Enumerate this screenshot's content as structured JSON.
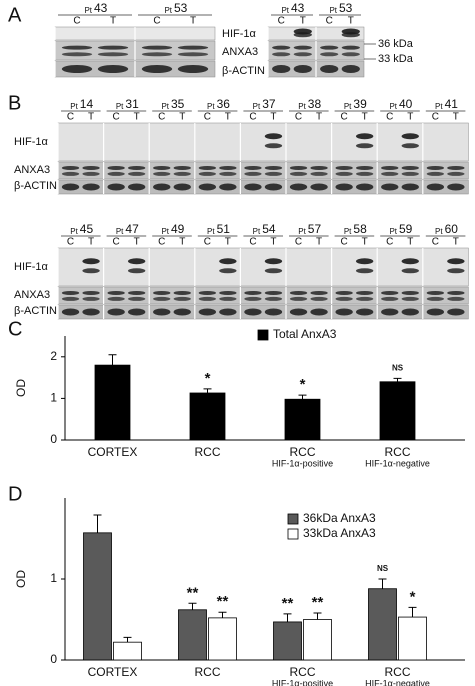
{
  "panel_labels": [
    "A",
    "B",
    "C",
    "D"
  ],
  "panel_a": {
    "left_blot": {
      "patients": [
        {
          "prefix": "Pt",
          "number": "43",
          "lanes": [
            "C",
            "T"
          ]
        },
        {
          "prefix": "Pt",
          "number": "53",
          "lanes": [
            "C",
            "T"
          ]
        }
      ]
    },
    "right_blot": {
      "patients": [
        {
          "prefix": "Pt",
          "number": "43",
          "lanes": [
            "C",
            "T"
          ]
        },
        {
          "prefix": "Pt",
          "number": "53",
          "lanes": [
            "C",
            "T"
          ]
        }
      ],
      "row_labels": [
        "HIF-1α",
        "ANXA3",
        "β-ACTIN"
      ],
      "markers": [
        "36 kDa",
        "33 kDa"
      ]
    }
  },
  "panel_b": {
    "rows": [
      {
        "row_labels": [
          "HIF-1α",
          "ANXA3",
          "β-ACTIN"
        ],
        "patients": [
          {
            "prefix": "Pt",
            "number": "14",
            "lanes": [
              "C",
              "T"
            ]
          },
          {
            "prefix": "Pt",
            "number": "31",
            "lanes": [
              "C",
              "T"
            ]
          },
          {
            "prefix": "Pt",
            "number": "35",
            "lanes": [
              "C",
              "T"
            ]
          },
          {
            "prefix": "Pt",
            "number": "36",
            "lanes": [
              "C",
              "T"
            ]
          },
          {
            "prefix": "Pt",
            "number": "37",
            "lanes": [
              "C",
              "T"
            ]
          },
          {
            "prefix": "Pt",
            "number": "38",
            "lanes": [
              "C",
              "T"
            ]
          },
          {
            "prefix": "Pt",
            "number": "39",
            "lanes": [
              "C",
              "T"
            ]
          },
          {
            "prefix": "Pt",
            "number": "40",
            "lanes": [
              "C",
              "T"
            ]
          },
          {
            "prefix": "Pt",
            "number": "41",
            "lanes": [
              "C",
              "T"
            ]
          }
        ]
      },
      {
        "row_labels": [
          "HIF-1α",
          "ANXA3",
          "β-ACTIN"
        ],
        "patients": [
          {
            "prefix": "Pt",
            "number": "45",
            "lanes": [
              "C",
              "T"
            ]
          },
          {
            "prefix": "Pt",
            "number": "47",
            "lanes": [
              "C",
              "T"
            ]
          },
          {
            "prefix": "Pt",
            "number": "49",
            "lanes": [
              "C",
              "T"
            ]
          },
          {
            "prefix": "Pt",
            "number": "51",
            "lanes": [
              "C",
              "T"
            ]
          },
          {
            "prefix": "Pt",
            "number": "54",
            "lanes": [
              "C",
              "T"
            ]
          },
          {
            "prefix": "Pt",
            "number": "57",
            "lanes": [
              "C",
              "T"
            ]
          },
          {
            "prefix": "Pt",
            "number": "58",
            "lanes": [
              "C",
              "T"
            ]
          },
          {
            "prefix": "Pt",
            "number": "59",
            "lanes": [
              "C",
              "T"
            ]
          },
          {
            "prefix": "Pt",
            "number": "60",
            "lanes": [
              "C",
              "T"
            ]
          }
        ]
      }
    ]
  },
  "chart_data": [
    {
      "type": "bar",
      "ylabel": "OD",
      "categories": [
        "CORTEX",
        "RCC",
        "RCC",
        "RCC"
      ],
      "category_sublabels": [
        null,
        null,
        "HIF-1α-positive",
        "HIF-1α-negative"
      ],
      "ylim": [
        0,
        2.5
      ],
      "yticks": [
        0,
        1,
        2
      ],
      "legend": "upper right",
      "series": [
        {
          "name": "Total AnxA3",
          "color": "#000000",
          "values": [
            1.8,
            1.13,
            0.98,
            1.4
          ],
          "errors": [
            0.25,
            0.1,
            0.1,
            0.08
          ],
          "annotations": [
            null,
            "*",
            "*",
            "NS"
          ]
        }
      ]
    },
    {
      "type": "bar",
      "ylabel": "OD",
      "categories": [
        "CORTEX",
        "RCC",
        "RCC",
        "RCC"
      ],
      "category_sublabels": [
        null,
        null,
        "HIF-1α-positive",
        "HIF-1α-negative"
      ],
      "ylim": [
        0,
        2
      ],
      "yticks": [
        0,
        1
      ],
      "legend": "upper right",
      "series": [
        {
          "name": "36kDa AnxA3",
          "color": "#5a5a5a",
          "values": [
            1.57,
            0.62,
            0.47,
            0.88
          ],
          "errors": [
            0.22,
            0.08,
            0.1,
            0.12
          ],
          "annotations": [
            null,
            "**",
            "**",
            "NS"
          ]
        },
        {
          "name": "33kDa AnxA3",
          "color": "#ffffff",
          "values": [
            0.22,
            0.52,
            0.5,
            0.53
          ],
          "errors": [
            0.06,
            0.07,
            0.08,
            0.12
          ],
          "annotations": [
            null,
            "**",
            "**",
            "*"
          ]
        }
      ]
    }
  ]
}
